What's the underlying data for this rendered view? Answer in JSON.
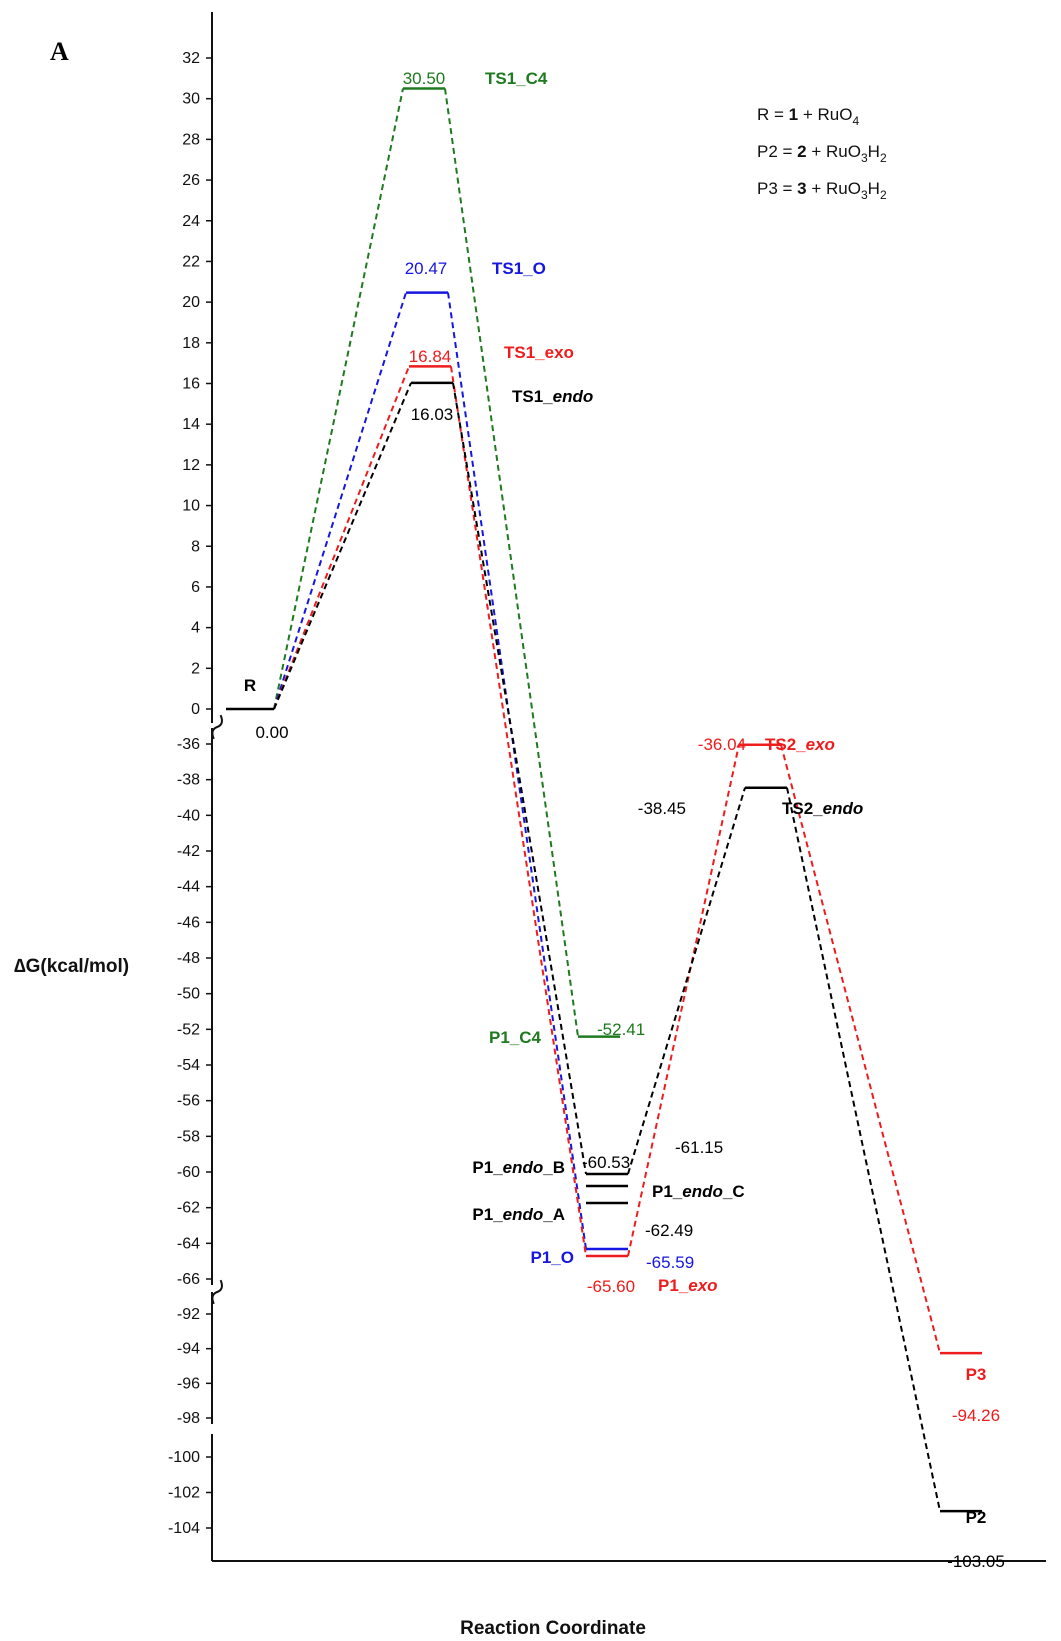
{
  "panel_label": "A",
  "chart_data": {
    "type": "line",
    "title": "",
    "xlabel": "Reaction Coordinate",
    "ylabel": "∆G(kcal/mol)",
    "axis_breaks": [
      [
        -36,
        0
      ],
      [
        -92,
        -66
      ],
      [
        -100,
        -98
      ]
    ],
    "y_segments": [
      {
        "ylim": [
          0,
          32
        ],
        "ticks": [
          0,
          2,
          4,
          6,
          8,
          10,
          12,
          14,
          16,
          18,
          20,
          22,
          24,
          26,
          28,
          30,
          32
        ]
      },
      {
        "ylim": [
          -66,
          -36
        ],
        "ticks": [
          -36,
          -38,
          -40,
          -42,
          -44,
          -46,
          -48,
          -50,
          -52,
          -54,
          -56,
          -58,
          -60,
          -62,
          -64,
          -66
        ]
      },
      {
        "ylim": [
          -98,
          -92
        ],
        "ticks": [
          -92,
          -94,
          -96,
          -98
        ]
      },
      {
        "ylim": [
          -104,
          -100
        ],
        "ticks": [
          -100,
          -102,
          -104
        ]
      }
    ],
    "levels": [
      {
        "id": "R",
        "label": "R",
        "value": 0.0,
        "value_text": "0.00",
        "color": "#000000",
        "x": 0.5
      },
      {
        "id": "TS1_C4",
        "label": "TS1_C4",
        "value": 30.5,
        "value_text": "30.50",
        "color": "#1e7a1e",
        "x": 1.5
      },
      {
        "id": "TS1_O",
        "label": "TS1_O",
        "value": 20.47,
        "value_text": "20.47",
        "color": "#1616e0",
        "x": 1.5
      },
      {
        "id": "TS1_exo",
        "label": "TS1_exo",
        "value": 16.84,
        "value_text": "16.84",
        "color": "#ee1c1c",
        "x": 1.5
      },
      {
        "id": "TS1_endo",
        "label_parts": [
          "TS1_",
          "endo"
        ],
        "value": 16.03,
        "value_text": "16.03",
        "color": "#000000",
        "x": 1.5
      },
      {
        "id": "P1_C4",
        "label": "P1_C4",
        "value": -52.41,
        "value_text": "-52.41",
        "color": "#1e7a1e",
        "x": 2.5
      },
      {
        "id": "P1_endo_B",
        "label_parts": [
          "P1_",
          "endo",
          "_B"
        ],
        "value": -60.53,
        "value_text": "-60.53",
        "color": "#000000",
        "x": 2.5
      },
      {
        "id": "P1_endo_C",
        "label_parts": [
          "P1_",
          "endo",
          "_C"
        ],
        "value": -61.15,
        "value_text": "-61.15",
        "color": "#000000",
        "x": 2.5
      },
      {
        "id": "P1_endo_A",
        "label_parts": [
          "P1_",
          "endo",
          "_A"
        ],
        "value": -62.49,
        "value_text": "-62.49",
        "color": "#000000",
        "x": 2.5
      },
      {
        "id": "P1_O",
        "label": "P1_O",
        "value": -65.59,
        "value_text": "-65.59",
        "color": "#1616e0",
        "x": 2.5
      },
      {
        "id": "P1_exo",
        "label_parts": [
          "P1_",
          "exo"
        ],
        "value": -65.6,
        "value_text": "-65.60",
        "color": "#ee1c1c",
        "x": 2.5
      },
      {
        "id": "TS2_exo",
        "label_parts": [
          "TS2_",
          "exo"
        ],
        "value": -36.04,
        "value_text": "-36.04",
        "color": "#ee1c1c",
        "x": 3.5
      },
      {
        "id": "TS2_endo",
        "label_parts": [
          "TS2_",
          "endo"
        ],
        "value": -38.45,
        "value_text": "-38.45",
        "color": "#000000",
        "x": 3.5
      },
      {
        "id": "P3",
        "label": "P3",
        "value": -94.26,
        "value_text": "-94.26",
        "color": "#ee1c1c",
        "x": 4.5
      },
      {
        "id": "P2",
        "label": "P2",
        "value": -103.05,
        "value_text": "-103.05",
        "color": "#000000",
        "x": 4.5
      }
    ],
    "paths": [
      {
        "color": "#1e7a1e",
        "levels": [
          "R",
          "TS1_C4",
          "P1_C4"
        ]
      },
      {
        "color": "#1616e0",
        "levels": [
          "R",
          "TS1_O",
          "P1_O"
        ]
      },
      {
        "color": "#ee1c1c",
        "levels": [
          "R",
          "TS1_exo",
          "P1_exo",
          "TS2_exo",
          "P3"
        ]
      },
      {
        "color": "#000000",
        "levels": [
          "R",
          "TS1_endo",
          "P1_endo_B",
          "TS2_endo",
          "P2"
        ]
      }
    ],
    "legend": [
      {
        "parts": [
          "R = ",
          "1",
          " + RuO",
          "4",
          ""
        ]
      },
      {
        "parts": [
          "P2 = ",
          "2",
          " + RuO",
          "3",
          "H",
          "2"
        ]
      },
      {
        "parts": [
          "P3 = ",
          "3",
          " + RuO",
          "3",
          "H",
          "2"
        ]
      }
    ]
  }
}
